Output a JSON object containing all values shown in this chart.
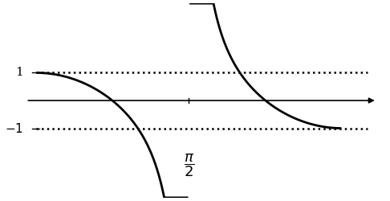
{
  "title": "",
  "xlabel_pi_2": "\\frac{\\pi}{2}",
  "yticks": [
    1,
    -1
  ],
  "ytick_labels": [
    "1",
    "-1"
  ],
  "xmin": 0,
  "xmax": 3.4,
  "ymin": -3.5,
  "ymax": 3.5,
  "asymptote": 1.5707963267948966,
  "dashed_y1": 1.0,
  "dashed_y2": -1.0,
  "line_color": "black",
  "dashed_color": "black",
  "background_color": "white",
  "figsize": [
    4.86,
    2.5
  ],
  "dpi": 100
}
